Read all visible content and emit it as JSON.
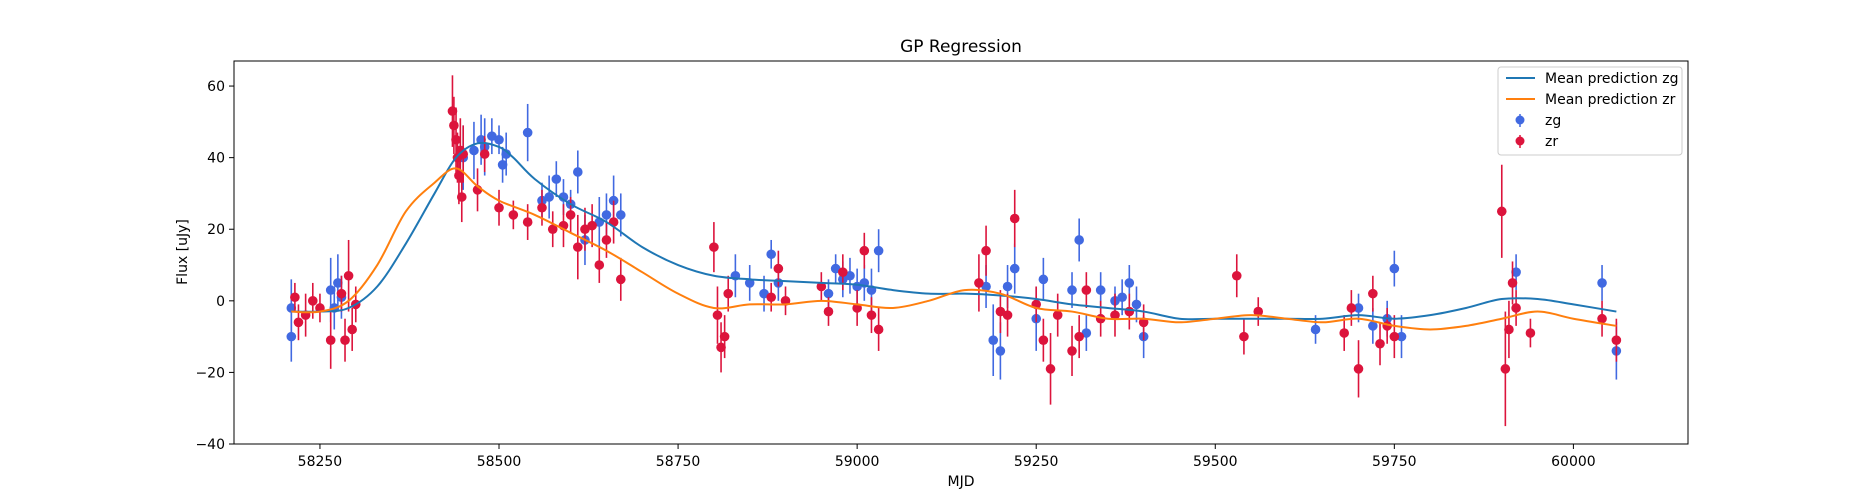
{
  "chart_data": {
    "type": "scatter",
    "title": "GP Regression",
    "xlabel": "MJD",
    "ylabel": "Flux [uJy]",
    "xlim": [
      58130,
      60160
    ],
    "ylim": [
      -40,
      67
    ],
    "xticks": [
      58250,
      58500,
      58750,
      59000,
      59250,
      59500,
      59750,
      60000
    ],
    "yticks": [
      -40,
      -20,
      0,
      20,
      40,
      60
    ],
    "grid": false,
    "legend_position": "top-right",
    "legend": {
      "entries": [
        "Mean prediction zg",
        "Mean prediction zr",
        "zg",
        "zr"
      ]
    },
    "colors": {
      "zg_line": "#1f77b4",
      "zr_line": "#ff7f0e",
      "zg_points": "#4169e1",
      "zr_points": "#dc143c"
    },
    "series": [
      {
        "name": "Mean prediction zg",
        "kind": "line",
        "x": [
          58210,
          58250,
          58290,
          58330,
          58370,
          58410,
          58440,
          58470,
          58500,
          58520,
          58550,
          58600,
          58650,
          58700,
          58750,
          58800,
          58850,
          58900,
          58950,
          59000,
          59050,
          59100,
          59150,
          59200,
          59250,
          59300,
          59350,
          59400,
          59450,
          59500,
          59550,
          59600,
          59650,
          59700,
          59750,
          59800,
          59850,
          59900,
          59950,
          60000,
          60060
        ],
        "y": [
          -3,
          -3,
          -2,
          4,
          16,
          30,
          40,
          44,
          43,
          40,
          34,
          27,
          22,
          15,
          10,
          7,
          6,
          5.5,
          5,
          4.5,
          3,
          2,
          2,
          1.5,
          0.5,
          -1,
          -2,
          -3,
          -5,
          -5,
          -5,
          -5,
          -5,
          -4,
          -5,
          -4,
          -2,
          0.5,
          0.5,
          -1,
          -3
        ]
      },
      {
        "name": "Mean prediction zr",
        "kind": "line",
        "x": [
          58210,
          58250,
          58290,
          58330,
          58370,
          58410,
          58440,
          58470,
          58500,
          58550,
          58600,
          58650,
          58700,
          58750,
          58800,
          58850,
          58900,
          58950,
          59000,
          59050,
          59100,
          59150,
          59200,
          59250,
          59300,
          59350,
          59400,
          59450,
          59500,
          59550,
          59600,
          59650,
          59700,
          59750,
          59800,
          59850,
          59900,
          59950,
          60000,
          60060
        ],
        "y": [
          -3,
          -3,
          0,
          10,
          25,
          33,
          37,
          32,
          28,
          24,
          19,
          14,
          8,
          2,
          -2,
          -1,
          -1,
          0,
          -1,
          -2,
          0,
          3,
          2,
          -2,
          -3,
          -5,
          -5,
          -6,
          -5,
          -4,
          -5,
          -6,
          -5,
          -7,
          -8,
          -7,
          -5,
          -3,
          -5,
          -7
        ]
      },
      {
        "name": "zg",
        "kind": "errorbar",
        "x": [
          58210,
          58210,
          58265,
          58270,
          58275,
          58280,
          58450,
          58465,
          58475,
          58480,
          58490,
          58500,
          58505,
          58510,
          58540,
          58560,
          58570,
          58580,
          58590,
          58600,
          58610,
          58620,
          58640,
          58650,
          58660,
          58670,
          58830,
          58850,
          58870,
          58880,
          58890,
          58960,
          58970,
          58980,
          58990,
          59000,
          59010,
          59020,
          59030,
          59180,
          59190,
          59200,
          59210,
          59220,
          59250,
          59260,
          59300,
          59310,
          59320,
          59340,
          59360,
          59370,
          59380,
          59390,
          59400,
          59640,
          59700,
          59720,
          59740,
          59750,
          59760,
          59920,
          60040,
          60060
        ],
        "y": [
          -2,
          -10,
          3,
          -2,
          5,
          1,
          40,
          42,
          45,
          43,
          46,
          45,
          38,
          41,
          47,
          28,
          29,
          34,
          29,
          27,
          36,
          17,
          22,
          24,
          28,
          24,
          7,
          5,
          2,
          13,
          5,
          2,
          9,
          6,
          7,
          4,
          5,
          3,
          14,
          4,
          -11,
          -14,
          4,
          9,
          -5,
          6,
          3,
          17,
          -9,
          3,
          0,
          1,
          5,
          -1,
          -10,
          -8,
          -2,
          -7,
          -5,
          9,
          -10,
          8,
          5,
          -14
        ],
        "yerr": [
          8,
          7,
          9,
          6,
          8,
          6,
          9,
          8,
          7,
          8,
          5,
          4,
          5,
          6,
          8,
          5,
          6,
          5,
          5,
          4,
          6,
          7,
          7,
          6,
          7,
          6,
          6,
          5,
          5,
          4,
          5,
          4,
          4,
          5,
          5,
          5,
          5,
          6,
          6,
          6,
          10,
          8,
          6,
          7,
          9,
          6,
          5,
          6,
          5,
          5,
          4,
          5,
          5,
          5,
          6,
          4,
          4,
          5,
          5,
          5,
          6,
          5,
          5,
          8
        ]
      },
      {
        "name": "zr",
        "kind": "errorbar",
        "x": [
          58215,
          58220,
          58230,
          58240,
          58250,
          58265,
          58280,
          58285,
          58290,
          58295,
          58300,
          58435,
          58437,
          58440,
          58442,
          58444,
          58446,
          58448,
          58450,
          58470,
          58480,
          58500,
          58520,
          58540,
          58560,
          58575,
          58590,
          58600,
          58610,
          58620,
          58630,
          58640,
          58650,
          58660,
          58670,
          58800,
          58805,
          58810,
          58815,
          58820,
          58880,
          58890,
          58900,
          58950,
          58960,
          58980,
          59000,
          59010,
          59020,
          59030,
          59170,
          59180,
          59200,
          59210,
          59220,
          59250,
          59260,
          59270,
          59280,
          59300,
          59310,
          59320,
          59340,
          59360,
          59380,
          59400,
          59530,
          59540,
          59560,
          59680,
          59690,
          59700,
          59720,
          59730,
          59740,
          59750,
          59900,
          59905,
          59910,
          59915,
          59920,
          59940,
          60040,
          60060
        ],
        "y": [
          1,
          -6,
          -4,
          0,
          -2,
          -11,
          2,
          -11,
          7,
          -8,
          -1,
          53,
          49,
          45,
          40,
          35,
          42,
          29,
          41,
          31,
          41,
          26,
          24,
          22,
          26,
          20,
          21,
          24,
          15,
          20,
          21,
          10,
          17,
          22,
          6,
          15,
          -4,
          -13,
          -10,
          2,
          1,
          9,
          0,
          4,
          -3,
          8,
          -2,
          14,
          -4,
          -8,
          5,
          14,
          -3,
          -4,
          23,
          -1,
          -11,
          -19,
          -4,
          -14,
          -10,
          3,
          -5,
          -4,
          -3,
          -6,
          7,
          -10,
          -3,
          -9,
          -2,
          -19,
          2,
          -12,
          -7,
          -10,
          25,
          -19,
          -8,
          5,
          -2,
          -9,
          -5,
          -11
        ],
        "yerr": [
          4,
          5,
          6,
          5,
          4,
          8,
          5,
          6,
          10,
          6,
          5,
          10,
          8,
          9,
          7,
          8,
          9,
          7,
          8,
          6,
          5,
          5,
          4,
          5,
          5,
          5,
          6,
          5,
          9,
          6,
          6,
          5,
          5,
          6,
          6,
          7,
          8,
          7,
          6,
          5,
          4,
          5,
          4,
          4,
          4,
          5,
          5,
          5,
          5,
          6,
          8,
          7,
          6,
          6,
          8,
          5,
          6,
          10,
          6,
          7,
          6,
          5,
          5,
          6,
          5,
          5,
          6,
          5,
          4,
          5,
          5,
          8,
          5,
          6,
          5,
          6,
          13,
          16,
          8,
          6,
          5,
          4,
          5,
          6
        ]
      }
    ]
  }
}
